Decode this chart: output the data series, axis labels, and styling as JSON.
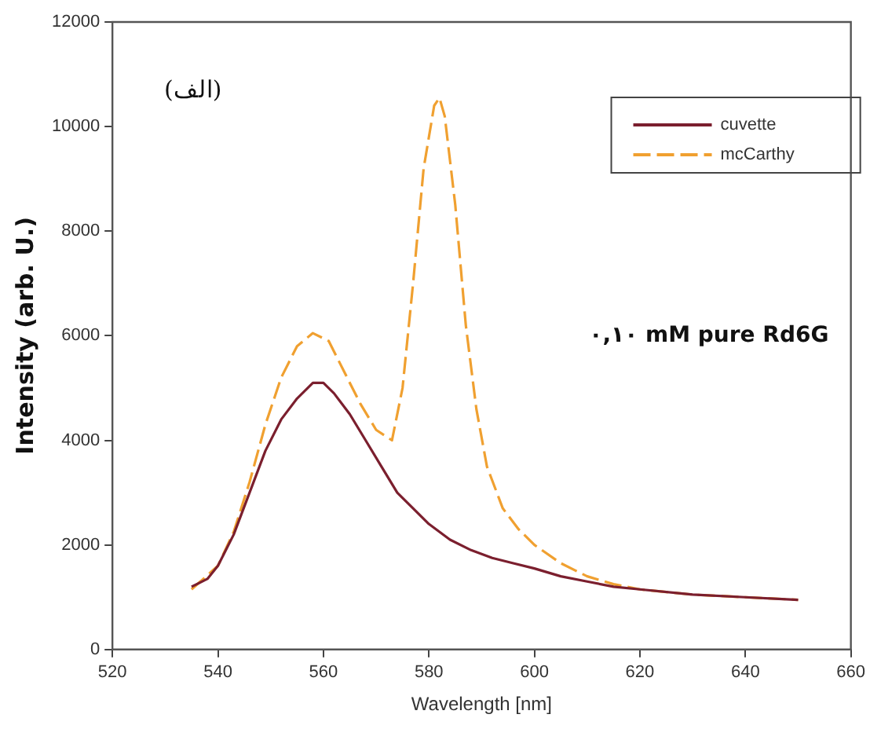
{
  "chart_data": {
    "type": "line",
    "xlabel": "Wavelength [nm]",
    "ylabel": "Intensity (arb. U.)",
    "annotations": [
      "(الف)",
      "۰,۱۰ mM pure Rd6G"
    ],
    "xlim": [
      520,
      660
    ],
    "xticks": [
      520,
      540,
      560,
      580,
      600,
      620,
      640,
      660
    ],
    "ylim": [
      0,
      12000
    ],
    "yticks": [
      0,
      2000,
      4000,
      6000,
      8000,
      10000,
      12000
    ],
    "grid": false,
    "legend": "top right",
    "marker": "none",
    "series": [
      {
        "name": "cuvette",
        "color": "#7b1f2e",
        "line_style": "solid",
        "x": [
          535,
          538,
          540,
          543,
          546,
          549,
          552,
          555,
          558,
          560,
          562,
          565,
          568,
          571,
          574,
          577,
          580,
          584,
          588,
          592,
          596,
          600,
          605,
          610,
          615,
          620,
          630,
          640,
          650
        ],
        "values": [
          1200,
          1350,
          1600,
          2200,
          3000,
          3800,
          4400,
          4800,
          5100,
          5100,
          4900,
          4500,
          4000,
          3500,
          3000,
          2700,
          2400,
          2100,
          1900,
          1750,
          1650,
          1550,
          1400,
          1300,
          1200,
          1150,
          1050,
          1000,
          950
        ]
      },
      {
        "name": "mcCarthy",
        "color": "#f0a030",
        "line_style": "dashed",
        "x": [
          535,
          540,
          543,
          546,
          549,
          552,
          555,
          558,
          561,
          564,
          567,
          570,
          573,
          575,
          577,
          579,
          581,
          582,
          583,
          585,
          587,
          589,
          591,
          594,
          597,
          600,
          605,
          610,
          615,
          620,
          630,
          640,
          650
        ],
        "values": [
          1150,
          1600,
          2250,
          3200,
          4300,
          5200,
          5800,
          6050,
          5900,
          5300,
          4700,
          4200,
          4000,
          5000,
          7000,
          9200,
          10400,
          10550,
          10200,
          8500,
          6200,
          4600,
          3500,
          2700,
          2300,
          2000,
          1650,
          1400,
          1250,
          1150,
          1050,
          1000,
          950
        ]
      }
    ]
  }
}
